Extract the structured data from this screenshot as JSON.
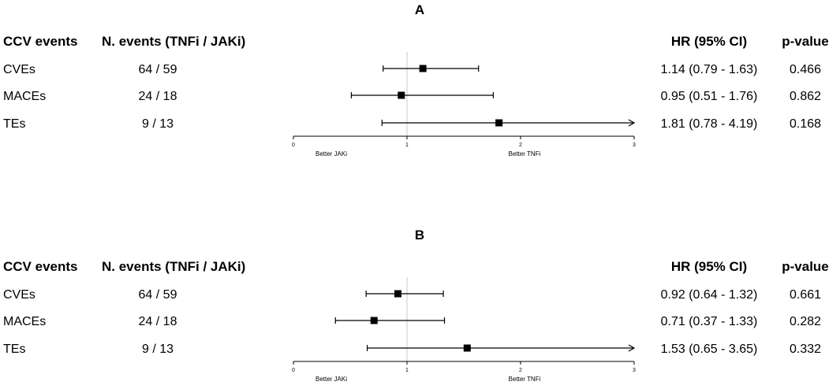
{
  "chart_data": [
    {
      "type": "forest",
      "title": "A",
      "headers": {
        "events": "CCV events",
        "counts": "N. events (TNFi / JAKi)",
        "hr": "HR (95% CI)",
        "p": "p-value"
      },
      "rows": [
        {
          "label": "CVEs",
          "counts": "64 / 59",
          "hr": 1.14,
          "lower": 0.79,
          "upper": 1.63,
          "hr_text": "1.14 (0.79 - 1.63)",
          "p_text": "0.466",
          "arrow_right": false
        },
        {
          "label": "MACEs",
          "counts": "24 / 18",
          "hr": 0.95,
          "lower": 0.51,
          "upper": 1.76,
          "hr_text": "0.95 (0.51 - 1.76)",
          "p_text": "0.862",
          "arrow_right": false
        },
        {
          "label": "TEs",
          "counts": "9 / 13",
          "hr": 1.81,
          "lower": 0.78,
          "upper": 4.19,
          "hr_text": "1.81 (0.78 - 4.19)",
          "p_text": "0.168",
          "arrow_right": true
        }
      ],
      "xlim": [
        0,
        3
      ],
      "xticks": [
        "0",
        "1",
        "2",
        "3"
      ],
      "reference_line": 1,
      "favor_left": "Better JAKi",
      "favor_right": "Better TNFi"
    },
    {
      "type": "forest",
      "title": "B",
      "headers": {
        "events": "CCV events",
        "counts": "N. events (TNFi / JAKi)",
        "hr": "HR (95% CI)",
        "p": "p-value"
      },
      "rows": [
        {
          "label": "CVEs",
          "counts": "64 / 59",
          "hr": 0.92,
          "lower": 0.64,
          "upper": 1.32,
          "hr_text": "0.92 (0.64 - 1.32)",
          "p_text": "0.661",
          "arrow_right": false
        },
        {
          "label": "MACEs",
          "counts": "24 / 18",
          "hr": 0.71,
          "lower": 0.37,
          "upper": 1.33,
          "hr_text": "0.71 (0.37 - 1.33)",
          "p_text": "0.282",
          "arrow_right": false
        },
        {
          "label": "TEs",
          "counts": "9 / 13",
          "hr": 1.53,
          "lower": 0.65,
          "upper": 3.65,
          "hr_text": "1.53 (0.65 - 3.65)",
          "p_text": "0.332",
          "arrow_right": true
        }
      ],
      "xlim": [
        0,
        3
      ],
      "xticks": [
        "0",
        "1",
        "2",
        "3"
      ],
      "reference_line": 1,
      "favor_left": "Better JAKi",
      "favor_right": "Better TNFi"
    }
  ]
}
